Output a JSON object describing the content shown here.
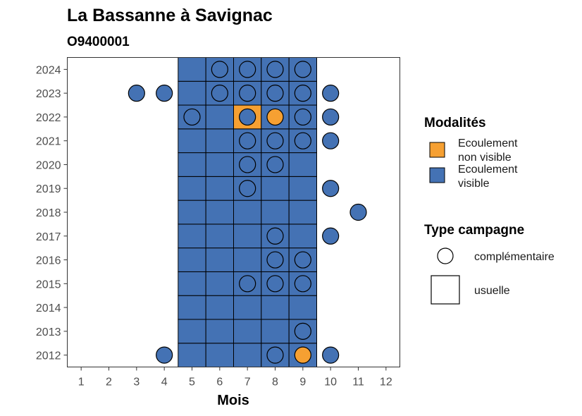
{
  "chart_data": {
    "type": "heatmap",
    "title": "La Bassanne à Savignac",
    "subtitle": "O9400001",
    "xlabel": "Mois",
    "ylabel": "",
    "x_ticks": [
      "1",
      "2",
      "3",
      "4",
      "5",
      "6",
      "7",
      "8",
      "9",
      "10",
      "11",
      "12"
    ],
    "y_ticks": [
      "2012",
      "2013",
      "2014",
      "2015",
      "2016",
      "2017",
      "2018",
      "2019",
      "2020",
      "2021",
      "2022",
      "2023",
      "2024"
    ],
    "xlim": [
      0.5,
      12.5
    ],
    "ylim": [
      2011.5,
      2024.5
    ],
    "grid": false,
    "legend_position": "right",
    "colors": {
      "Ecoulement visible": "#4472b4",
      "Ecoulement non visible": "#f6a032",
      "outline": "#000000",
      "panel_border": "#333333"
    },
    "legend": {
      "modalites": {
        "title": "Modalités",
        "items": [
          {
            "label_line1": "Ecoulement",
            "label_line2": "non visible",
            "color": "#f6a032"
          },
          {
            "label_line1": "Ecoulement",
            "label_line2": "visible",
            "color": "#4472b4"
          }
        ]
      },
      "campagne": {
        "title": "Type campagne",
        "items": [
          {
            "label": "complémentaire",
            "shape": "circle"
          },
          {
            "label": "usuelle",
            "shape": "square"
          }
        ]
      }
    },
    "usuelle_months": [
      5,
      6,
      7,
      8,
      9
    ],
    "usuelle_years": [
      2012,
      2013,
      2014,
      2015,
      2016,
      2017,
      2018,
      2019,
      2020,
      2021,
      2022,
      2023,
      2024
    ],
    "usuelle_non_visible": [
      [
        2022,
        7
      ]
    ],
    "complementaire": [
      {
        "year": 2024,
        "month": 6,
        "modalite": "Ecoulement visible"
      },
      {
        "year": 2024,
        "month": 7,
        "modalite": "Ecoulement visible"
      },
      {
        "year": 2024,
        "month": 8,
        "modalite": "Ecoulement visible"
      },
      {
        "year": 2024,
        "month": 9,
        "modalite": "Ecoulement visible"
      },
      {
        "year": 2023,
        "month": 3,
        "modalite": "Ecoulement visible"
      },
      {
        "year": 2023,
        "month": 4,
        "modalite": "Ecoulement visible"
      },
      {
        "year": 2023,
        "month": 6,
        "modalite": "Ecoulement visible"
      },
      {
        "year": 2023,
        "month": 7,
        "modalite": "Ecoulement visible"
      },
      {
        "year": 2023,
        "month": 8,
        "modalite": "Ecoulement visible"
      },
      {
        "year": 2023,
        "month": 9,
        "modalite": "Ecoulement visible"
      },
      {
        "year": 2023,
        "month": 10,
        "modalite": "Ecoulement visible"
      },
      {
        "year": 2022,
        "month": 5,
        "modalite": "Ecoulement visible"
      },
      {
        "year": 2022,
        "month": 7,
        "modalite": "Ecoulement visible"
      },
      {
        "year": 2022,
        "month": 8,
        "modalite": "Ecoulement non visible"
      },
      {
        "year": 2022,
        "month": 9,
        "modalite": "Ecoulement visible"
      },
      {
        "year": 2022,
        "month": 10,
        "modalite": "Ecoulement visible"
      },
      {
        "year": 2021,
        "month": 7,
        "modalite": "Ecoulement visible"
      },
      {
        "year": 2021,
        "month": 8,
        "modalite": "Ecoulement visible"
      },
      {
        "year": 2021,
        "month": 9,
        "modalite": "Ecoulement visible"
      },
      {
        "year": 2021,
        "month": 10,
        "modalite": "Ecoulement visible"
      },
      {
        "year": 2020,
        "month": 7,
        "modalite": "Ecoulement visible"
      },
      {
        "year": 2020,
        "month": 8,
        "modalite": "Ecoulement visible"
      },
      {
        "year": 2019,
        "month": 7,
        "modalite": "Ecoulement visible"
      },
      {
        "year": 2019,
        "month": 10,
        "modalite": "Ecoulement visible"
      },
      {
        "year": 2018,
        "month": 11,
        "modalite": "Ecoulement visible"
      },
      {
        "year": 2017,
        "month": 8,
        "modalite": "Ecoulement visible"
      },
      {
        "year": 2017,
        "month": 10,
        "modalite": "Ecoulement visible"
      },
      {
        "year": 2016,
        "month": 8,
        "modalite": "Ecoulement visible"
      },
      {
        "year": 2016,
        "month": 9,
        "modalite": "Ecoulement visible"
      },
      {
        "year": 2015,
        "month": 7,
        "modalite": "Ecoulement visible"
      },
      {
        "year": 2015,
        "month": 8,
        "modalite": "Ecoulement visible"
      },
      {
        "year": 2015,
        "month": 9,
        "modalite": "Ecoulement visible"
      },
      {
        "year": 2013,
        "month": 9,
        "modalite": "Ecoulement visible"
      },
      {
        "year": 2012,
        "month": 4,
        "modalite": "Ecoulement visible"
      },
      {
        "year": 2012,
        "month": 8,
        "modalite": "Ecoulement visible"
      },
      {
        "year": 2012,
        "month": 9,
        "modalite": "Ecoulement non visible"
      },
      {
        "year": 2012,
        "month": 10,
        "modalite": "Ecoulement visible"
      }
    ]
  }
}
